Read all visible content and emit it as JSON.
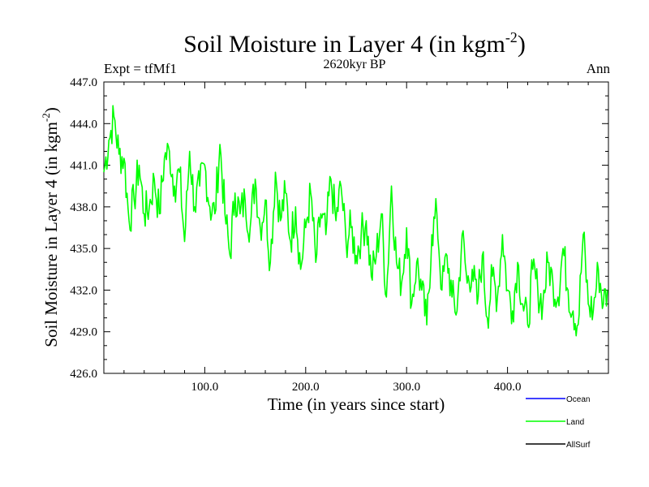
{
  "chart_data": {
    "type": "line",
    "title": "Soil Moisture in Layer 4 (in kgm",
    "title_sup": "-2",
    "title_close": ")",
    "subtitle": "2620kyr BP",
    "left_label": "Expt = tfMf1",
    "right_label": "Ann",
    "xlabel": "Time (in years since start)",
    "ylabel": "Soil Moisture in Layer 4 (in kgm",
    "ylabel_sup": "-2",
    "ylabel_close": ")",
    "xlim": [
      0,
      500
    ],
    "ylim": [
      426.0,
      447.0
    ],
    "xticks": [
      100,
      200,
      300,
      400
    ],
    "xtick_labels": [
      "100.0",
      "200.0",
      "300.0",
      "400.0"
    ],
    "yticks": [
      426,
      429,
      432,
      435,
      438,
      441,
      444,
      447
    ],
    "ytick_labels": [
      "426.0",
      "429.0",
      "432.0",
      "435.0",
      "438.0",
      "441.0",
      "444.0",
      "447.0"
    ],
    "series": [
      {
        "name": "Land",
        "color": "#00ff00",
        "x": [
          0,
          5,
          10,
          15,
          20,
          25,
          30,
          35,
          40,
          45,
          50,
          55,
          60,
          65,
          70,
          75,
          80,
          85,
          90,
          95,
          100,
          105,
          110,
          115,
          120,
          125,
          130,
          135,
          140,
          145,
          150,
          155,
          160,
          165,
          170,
          175,
          180,
          185,
          190,
          195,
          200,
          205,
          210,
          215,
          220,
          225,
          230,
          235,
          240,
          245,
          250,
          255,
          260,
          265,
          270,
          275,
          280,
          285,
          290,
          295,
          300,
          305,
          310,
          315,
          320,
          325,
          330,
          335,
          340,
          345,
          350,
          355,
          360,
          365,
          370,
          375,
          380,
          385,
          390,
          395,
          400,
          405,
          410,
          415,
          420,
          425,
          430,
          435,
          440,
          445,
          450,
          455,
          460,
          465,
          470,
          475,
          480,
          485,
          490,
          495,
          499
        ],
        "values": [
          440.5,
          442.8,
          444.5,
          441.8,
          441.5,
          437.0,
          438.5,
          441.0,
          437.5,
          438.0,
          440.0,
          437.5,
          441.5,
          442.0,
          439.5,
          440.5,
          435.5,
          442.0,
          438.0,
          439.5,
          441.0,
          438.0,
          437.5,
          442.5,
          437.5,
          434.5,
          439.0,
          437.5,
          438.5,
          436.5,
          440.0,
          436.5,
          438.5,
          434.0,
          440.5,
          437.0,
          439.0,
          435.5,
          438.0,
          433.5,
          436.5,
          439.0,
          434.0,
          437.5,
          436.0,
          440.0,
          437.0,
          439.5,
          435.5,
          436.5,
          434.5,
          436.0,
          437.0,
          433.0,
          434.5,
          437.5,
          431.5,
          439.5,
          434.0,
          432.5,
          436.5,
          431.0,
          434.0,
          432.0,
          429.5,
          436.0,
          437.5,
          432.0,
          434.5,
          431.5,
          430.5,
          436.0,
          432.5,
          433.5,
          431.0,
          434.5,
          430.0,
          433.0,
          431.5,
          436.0,
          432.0,
          430.5,
          434.0,
          431.0,
          429.5,
          433.5,
          432.0,
          431.0,
          434.0,
          432.5,
          431.5,
          435.0,
          432.0,
          430.5,
          429.5,
          436.0,
          431.0,
          430.5,
          433.5,
          431.0,
          432.0
        ]
      }
    ],
    "legend": [
      {
        "label": "Ocean",
        "color": "#0000ff"
      },
      {
        "label": "Land",
        "color": "#00ff00"
      },
      {
        "label": "AllSurf",
        "color": "#000000"
      }
    ]
  }
}
